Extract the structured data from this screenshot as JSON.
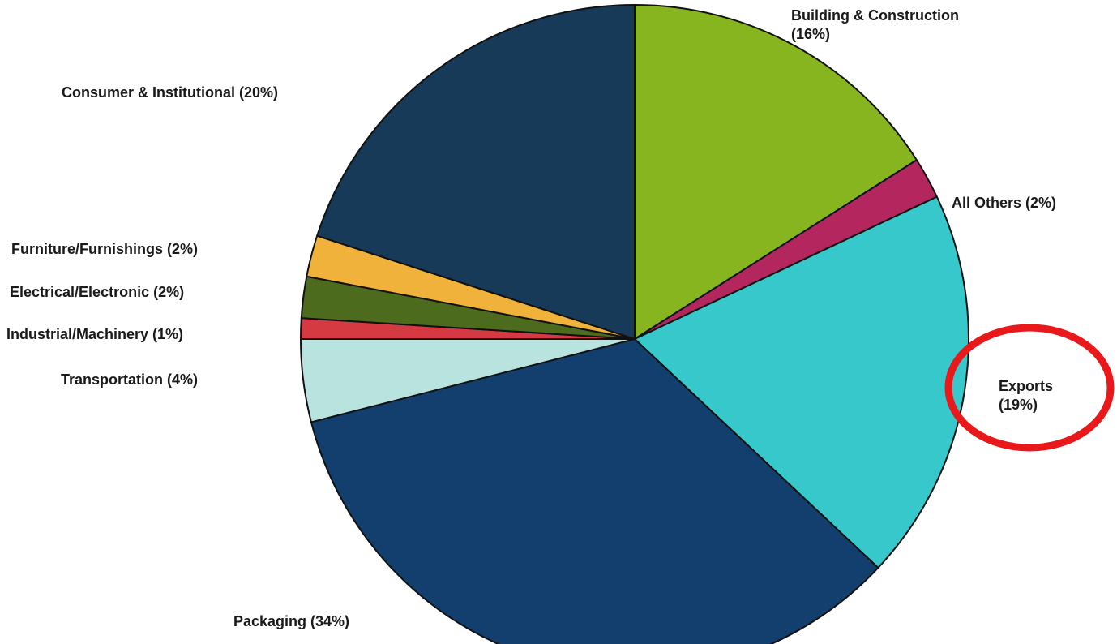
{
  "chart_data": {
    "type": "pie",
    "start": "12 o'clock",
    "direction": "clockwise",
    "slices": [
      {
        "name": "Building & Construction",
        "value": 16,
        "color": "#86b520",
        "label": "Building & Construction\n(16%)"
      },
      {
        "name": "All Others",
        "value": 2,
        "color": "#b3275e",
        "label": "All Others (2%)"
      },
      {
        "name": "Exports",
        "value": 19,
        "color": "#37c8cc",
        "label": "Exports\n(19%)"
      },
      {
        "name": "Packaging",
        "value": 34,
        "color": "#123f6e",
        "label": "Packaging (34%)"
      },
      {
        "name": "Transportation",
        "value": 4,
        "color": "#b9e3df",
        "label": "Transportation (4%)"
      },
      {
        "name": "Industrial/Machinery",
        "value": 1,
        "color": "#d53a43",
        "label": "Industrial/Machinery (1%)"
      },
      {
        "name": "Electrical/Electronic",
        "value": 2,
        "color": "#4c6b1c",
        "label": "Electrical/Electronic (2%)"
      },
      {
        "name": "Furniture/Furnishings",
        "value": 2,
        "color": "#f0b23a",
        "label": "Furniture/Furnishings (2%)"
      },
      {
        "name": "Consumer & Institutional",
        "value": 20,
        "color": "#163a58",
        "label": "Consumer & Institutional (20%)"
      }
    ]
  },
  "annotation": {
    "type": "highlight-circle",
    "target": "Exports",
    "color": "#e8181b"
  }
}
